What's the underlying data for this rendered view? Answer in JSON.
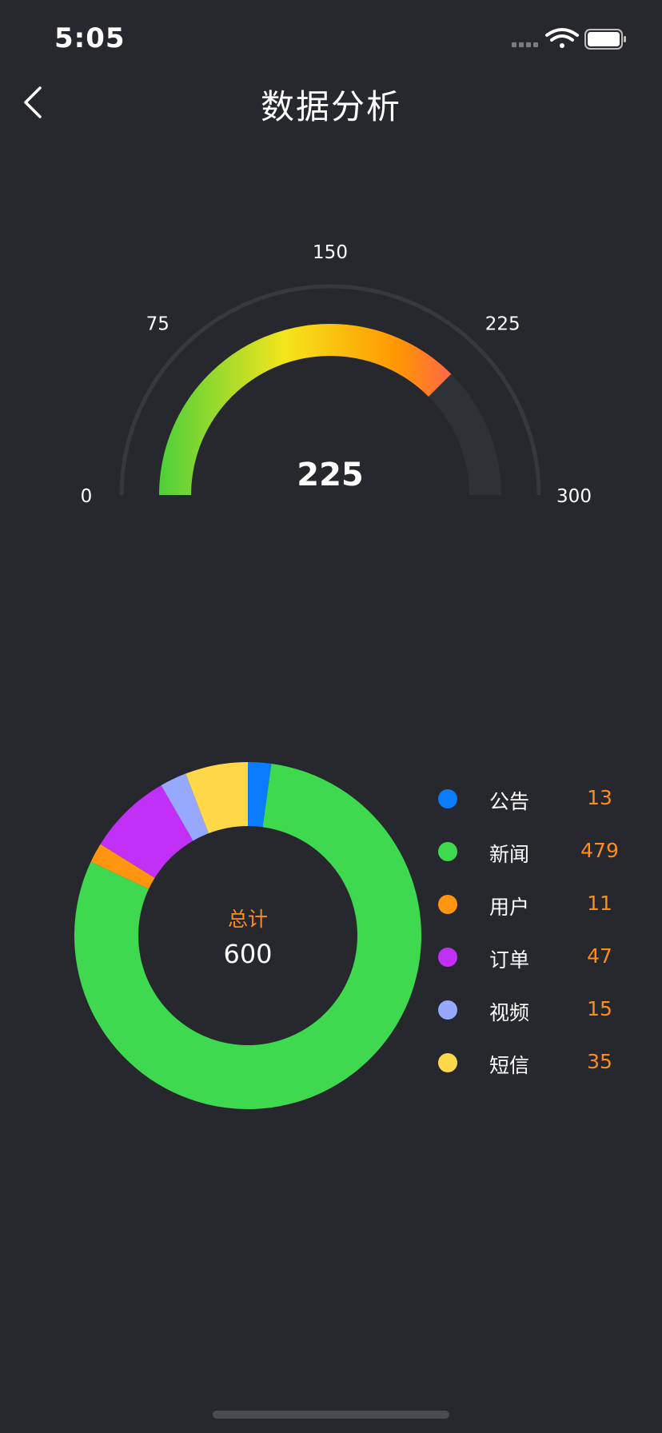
{
  "status_bar": {
    "time": "5:05"
  },
  "header": {
    "title": "数据分析"
  },
  "chart_data": [
    {
      "type": "gauge",
      "value": 225,
      "value_label": "225",
      "min": 0,
      "max": 300,
      "ticks": [
        "0",
        "75",
        "150",
        "225",
        "300"
      ],
      "gradient_colors": [
        "#2ecc40",
        "#f5e51b",
        "#ff9800",
        "#ff5a5a"
      ]
    },
    {
      "type": "pie",
      "center_label": "总计",
      "total": 600,
      "total_label": "600",
      "slices": [
        {
          "label": "公告",
          "value": 13,
          "value_label": "13",
          "color": "#0a7cff"
        },
        {
          "label": "新闻",
          "value": 479,
          "value_label": "479",
          "color": "#3ed94f"
        },
        {
          "label": "用户",
          "value": 11,
          "value_label": "11",
          "color": "#ff9410"
        },
        {
          "label": "订单",
          "value": 47,
          "value_label": "47",
          "color": "#c22ff7"
        },
        {
          "label": "视频",
          "value": 15,
          "value_label": "15",
          "color": "#97a8ff"
        },
        {
          "label": "短信",
          "value": 35,
          "value_label": "35",
          "color": "#ffd84a"
        }
      ]
    }
  ]
}
